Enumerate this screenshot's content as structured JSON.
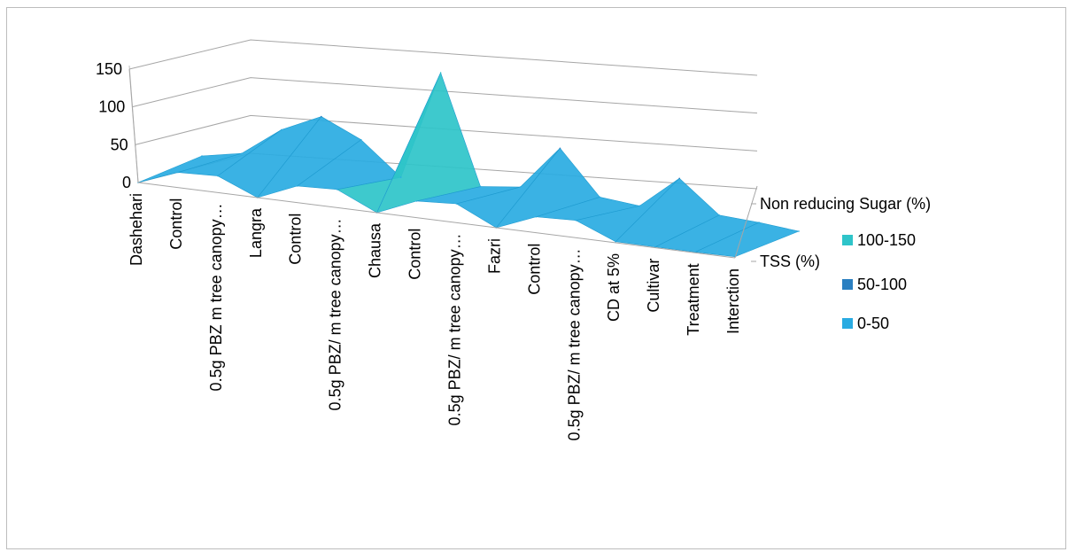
{
  "chart_data": {
    "type": "surface",
    "categories": [
      "Dashehari",
      "Control",
      "0.5g PBZ m tree canopy…",
      "Langra",
      "Control",
      "0.5g PBZ/ m tree canopy…",
      "Chausa",
      "Control",
      "0.5g PBZ/ m tree canopy…",
      "Fazri",
      "Control",
      "0.5g PBZ/ m tree canopy…",
      "CD at 5%",
      "Cultivar",
      "Treatment",
      "Interction"
    ],
    "depth_labels": [
      "Non reducing Sugar (%)",
      "TSS (%)"
    ],
    "series": [
      {
        "name": "TSS (%)",
        "values": [
          0,
          20,
          22,
          0,
          22,
          24,
          0,
          22,
          25,
          0,
          21,
          23,
          1.5,
          1.2,
          1.0,
          1.5
        ]
      },
      {
        "name": "Non reducing Sugar (%)",
        "values": [
          0,
          10,
          48,
          72,
          48,
          5,
          150,
          6,
          12,
          70,
          12,
          7,
          50,
          8,
          5,
          0
        ]
      }
    ],
    "ylim": [
      0,
      150
    ],
    "yticks": [
      0,
      50,
      100,
      150
    ],
    "legend": {
      "position": "right",
      "entries": [
        {
          "label": "100-150",
          "color": "#2ec4c9"
        },
        {
          "label": "50-100",
          "color": "#2a7fc1"
        },
        {
          "label": "0-50",
          "color": "#29abe2"
        }
      ]
    },
    "grid": true
  }
}
